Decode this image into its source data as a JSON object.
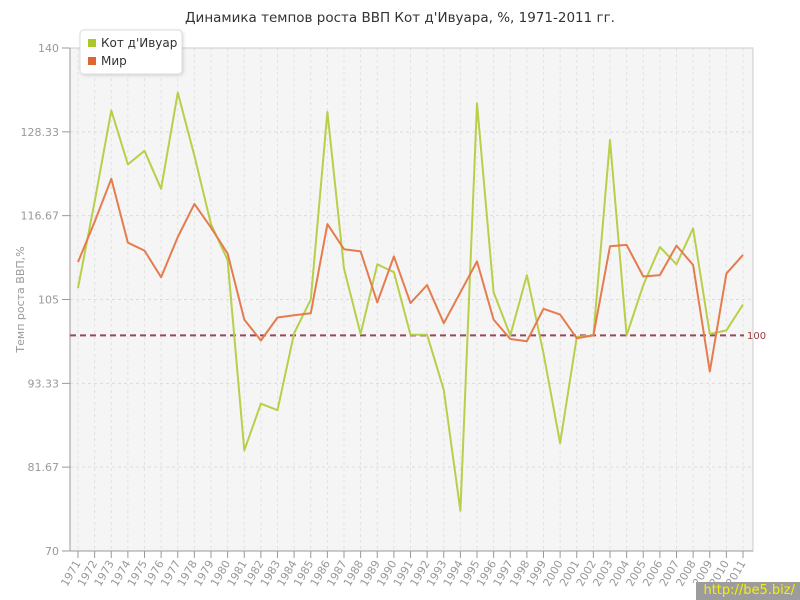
{
  "chart": {
    "title": "Динамика темпов роста ВВП Кот д'Ивуара, %, 1971-2011 гг."
  },
  "watermark": {
    "text": "http://be5.biz/"
  },
  "colors": {
    "cote_divoire_line": "#b8cf4a",
    "world_line": "#e57c4e",
    "cote_divoire_swatch": "#aac828",
    "world_swatch": "#dd6633",
    "reference_line": "#9b465a",
    "reference_label": "#963c3c",
    "axis": "#999999",
    "grid_h": "#dcdcdc",
    "grid_v": "#e2e2e2",
    "tick_text": "#999999",
    "legend_text": "#333333",
    "plot_bg": "#f5f5f5",
    "plot_border": "#cccccc"
  },
  "chart_data": {
    "type": "line",
    "title": "Динамика темпов роста ВВП Кот д'Ивуара, %, 1971-2011 гг.",
    "xlabel": "",
    "ylabel": "Темп роста ВВП,%",
    "ylim": [
      70,
      140
    ],
    "yticks": [
      70,
      81.67,
      93.33,
      105,
      116.67,
      128.33,
      140
    ],
    "ytick_labels": [
      "70",
      "81.67",
      "93.33",
      "105",
      "116.67",
      "128.33",
      "140"
    ],
    "grid": true,
    "legend_position": "top-left",
    "categories": [
      "1971",
      "1972",
      "1973",
      "1974",
      "1975",
      "1976",
      "1977",
      "1978",
      "1979",
      "1980",
      "1981",
      "1982",
      "1983",
      "1984",
      "1985",
      "1986",
      "1987",
      "1988",
      "1989",
      "1990",
      "1991",
      "1992",
      "1993",
      "1994",
      "1995",
      "1996",
      "1997",
      "1998",
      "1999",
      "2000",
      "2001",
      "2002",
      "2003",
      "2004",
      "2005",
      "2006",
      "2007",
      "2008",
      "2009",
      "2010",
      "2011"
    ],
    "series": [
      {
        "name": "Кот д'Ивуар",
        "values": [
          106.6,
          118.6,
          131.3,
          123.8,
          125.7,
          120.4,
          133.8,
          125.0,
          115.5,
          110.5,
          84.0,
          90.5,
          89.6,
          100.3,
          105.0,
          131.1,
          109.3,
          100.2,
          109.9,
          108.8,
          100.1,
          100.1,
          92.4,
          75.6,
          132.3,
          106.0,
          100.0,
          108.4,
          97.5,
          85.0,
          99.8,
          100.0,
          127.2,
          100.0,
          107.0,
          112.3,
          109.9,
          114.9,
          100.2,
          100.7,
          104.3
        ]
      },
      {
        "name": "Мир",
        "values": [
          110.2,
          115.8,
          121.8,
          112.9,
          111.8,
          108.1,
          113.7,
          118.3,
          115.0,
          111.4,
          102.2,
          99.3,
          102.5,
          102.8,
          103.1,
          115.5,
          112.0,
          111.7,
          104.6,
          111.0,
          104.5,
          107.0,
          101.7,
          106.0,
          110.3,
          102.2,
          99.5,
          99.2,
          103.7,
          102.9,
          99.6,
          100.0,
          112.4,
          112.6,
          108.2,
          108.4,
          112.5,
          109.8,
          95.0,
          108.6,
          111.2
        ]
      }
    ],
    "reference_line": {
      "value": 100,
      "label": "100"
    }
  }
}
